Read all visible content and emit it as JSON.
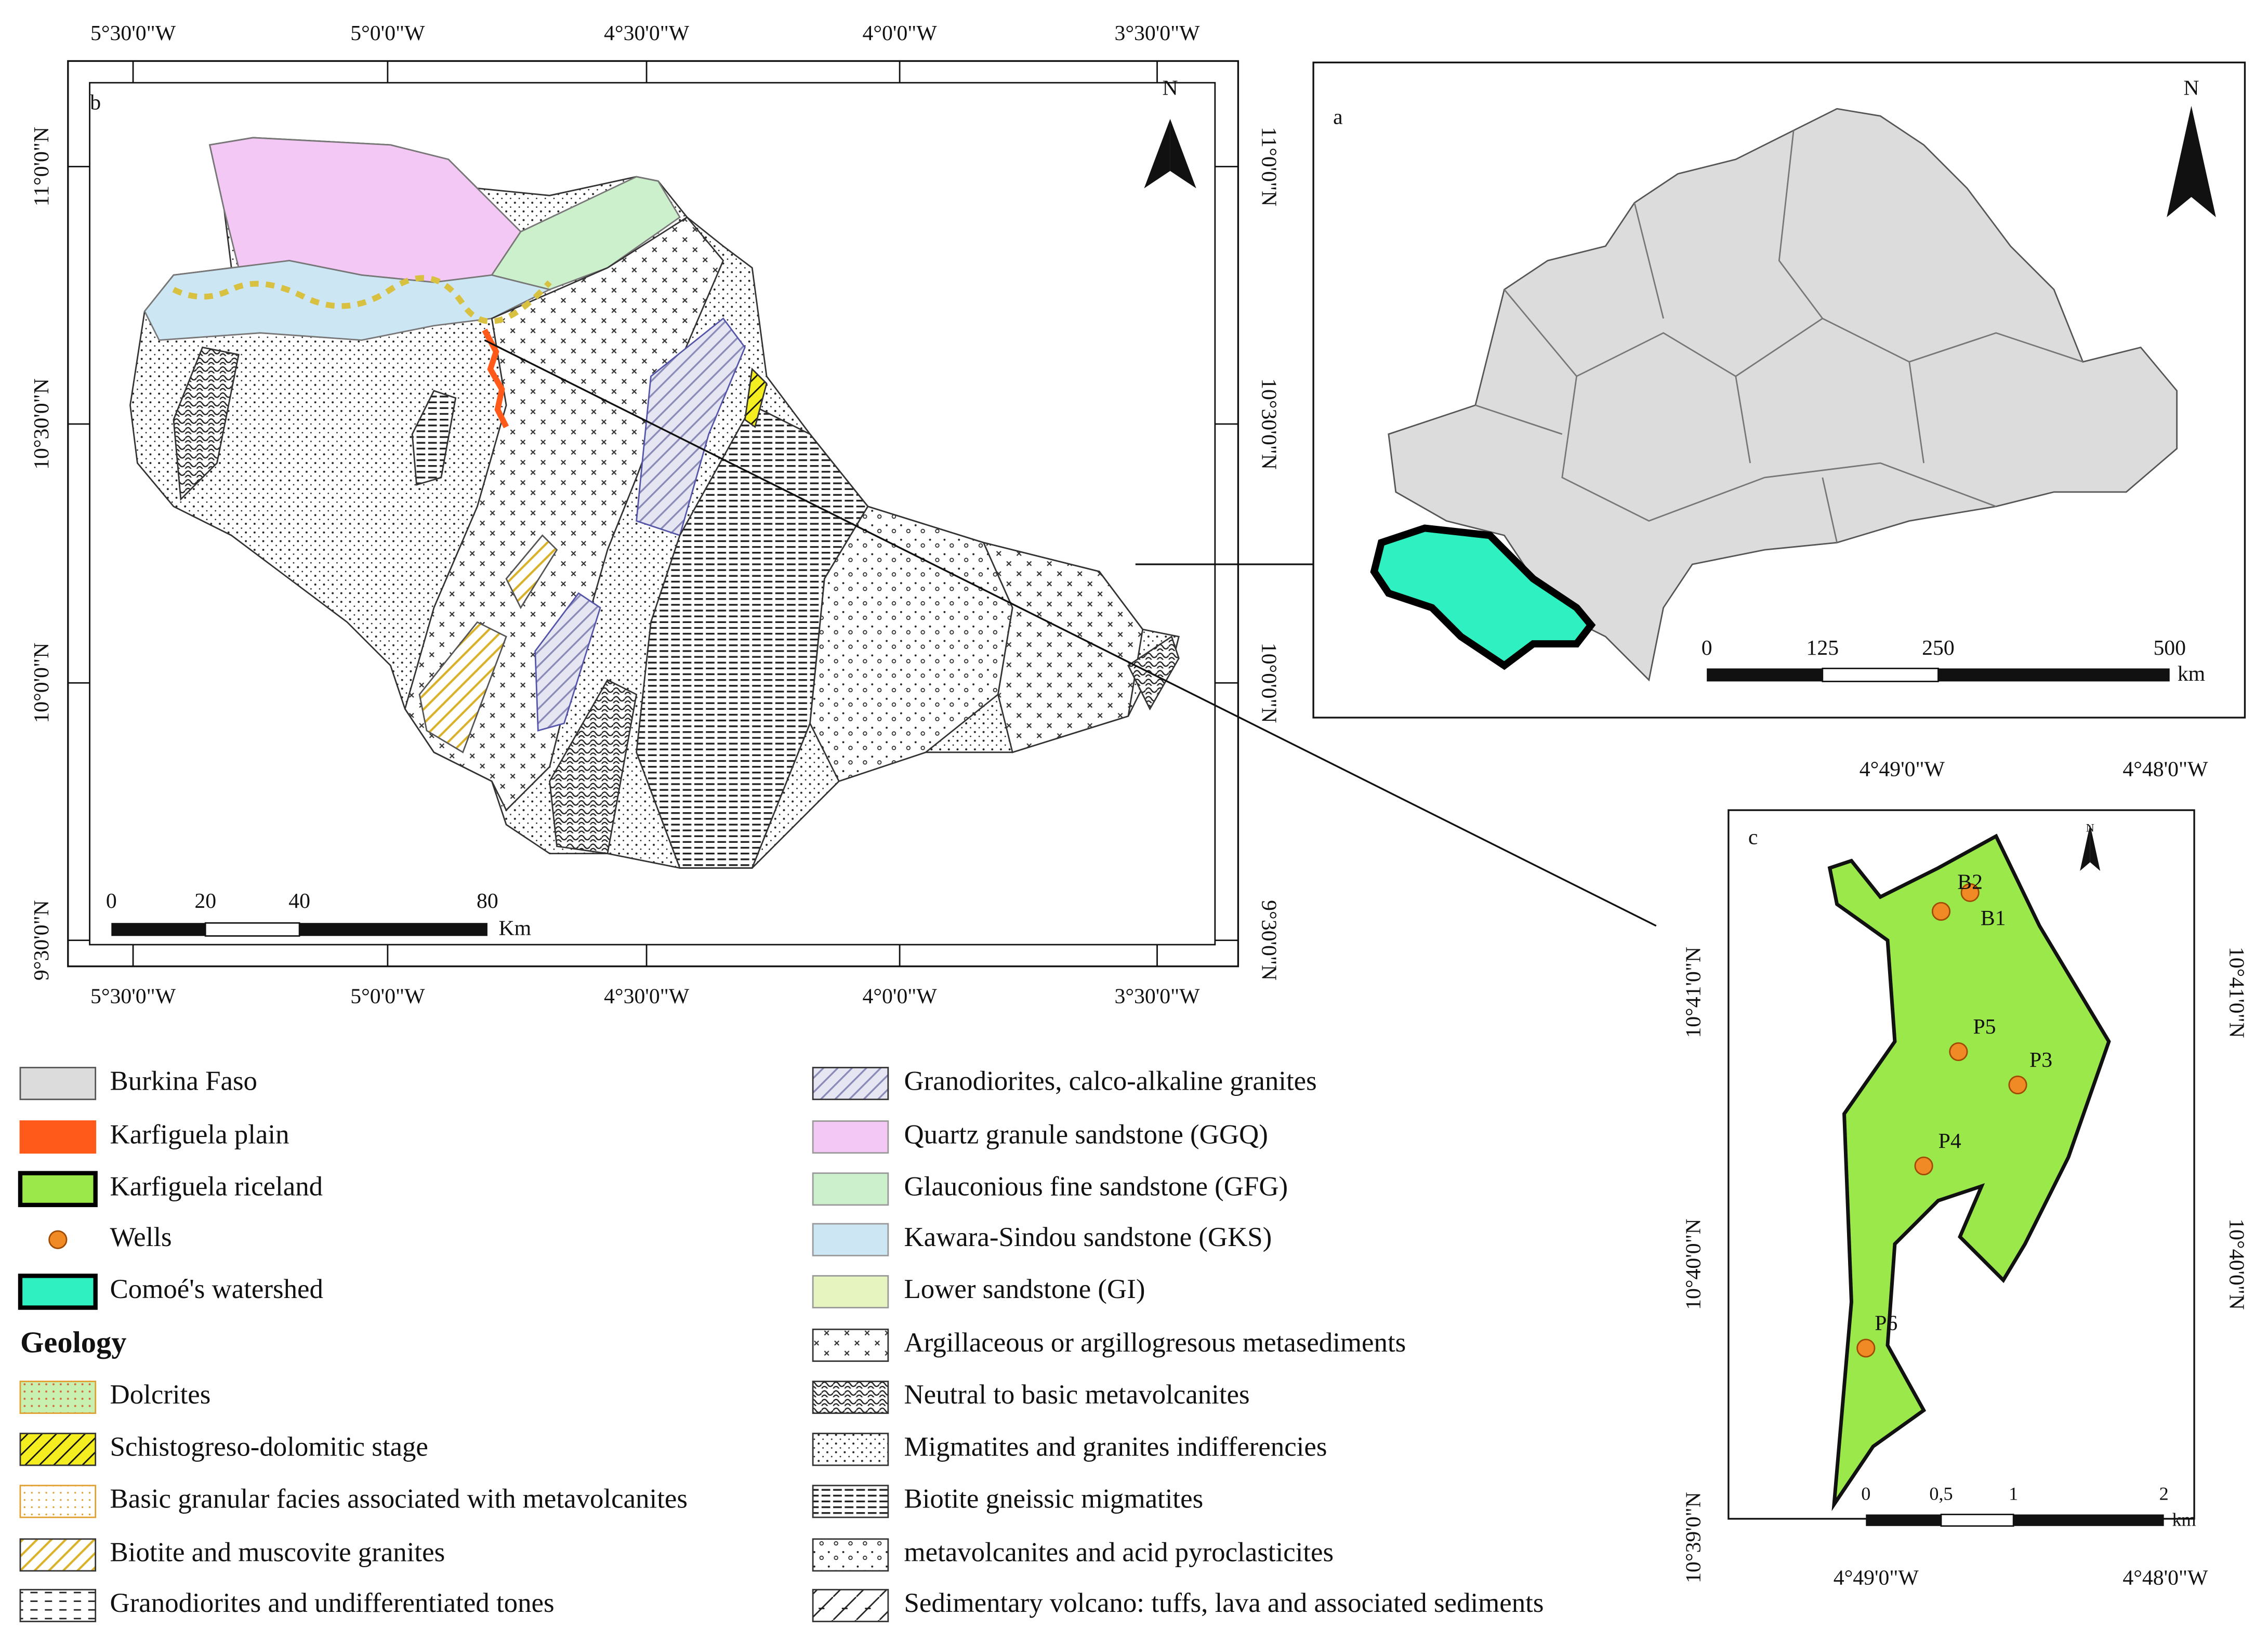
{
  "panel_b": {
    "label": "b",
    "north": "N",
    "top_lon": [
      "5°30'0\"W",
      "5°0'0\"W",
      "4°30'0\"W",
      "4°0'0\"W",
      "3°30'0\"W"
    ],
    "bottom_lon": [
      "5°30'0\"W",
      "5°0'0\"W",
      "4°30'0\"W",
      "4°0'0\"W",
      "3°30'0\"W"
    ],
    "left_lat": [
      "11°0'0\"N",
      "10°30'0\"N",
      "10°0'0\"N",
      "9°30'0\"N"
    ],
    "right_lat": [
      "11°0'0\"N",
      "10°30'0\"N",
      "10°0'0\"N",
      "9°30'0\"N"
    ],
    "scale": {
      "ticks": [
        "0",
        "20",
        "40",
        "80"
      ],
      "unit": "Km"
    }
  },
  "panel_a": {
    "label": "a",
    "north": "N",
    "scale": {
      "ticks": [
        "0",
        "125",
        "250",
        "500"
      ],
      "unit": "km"
    }
  },
  "panel_c": {
    "label": "c",
    "north": "N",
    "top_lon": [
      "4°49'0\"W",
      "4°48'0\"W"
    ],
    "bottom_lon": [
      "4°49'0\"W",
      "4°48'0\"W"
    ],
    "left_lat": [
      "10°41'0\"N",
      "10°40'0\"N",
      "10°39'0\"N"
    ],
    "right_lat": [
      "10°41'0\"N",
      "10°40'0\"N"
    ],
    "wells": [
      "B2",
      "B1",
      "P5",
      "P3",
      "P4",
      "P6"
    ],
    "scale": {
      "ticks": [
        "0",
        "0,5",
        "1",
        "2"
      ],
      "unit": "km"
    }
  },
  "legend": {
    "items": [
      "Burkina Faso",
      "Karfiguela plain",
      "Karfiguela riceland",
      "Wells",
      "Comoé's watershed"
    ],
    "geology_title": "Geology",
    "geology_left": [
      "Dolcrites",
      "Schistogreso-dolomitic stage",
      "Basic granular facies associated with metavolcanites",
      "Biotite and muscovite granites",
      "Granodiorites and undifferentiated tones"
    ],
    "geology_right": [
      "Granodiorites, calco-alkaline granites",
      "Quartz granule sandstone (GGQ)",
      "Glauconious fine sandstone (GFG)",
      "Kawara-Sindou sandstone (GKS)",
      "Lower sandstone (GI)",
      "Argillaceous or argillogresous metasediments",
      "Neutral to basic metavolcanites",
      "Migmatites and granites indifferencies",
      "Biotite gneissic migmatites",
      "metavolcanites and acid pyroclasticites",
      "Sedimentary volcano: tuffs, lava and associated sediments"
    ]
  }
}
